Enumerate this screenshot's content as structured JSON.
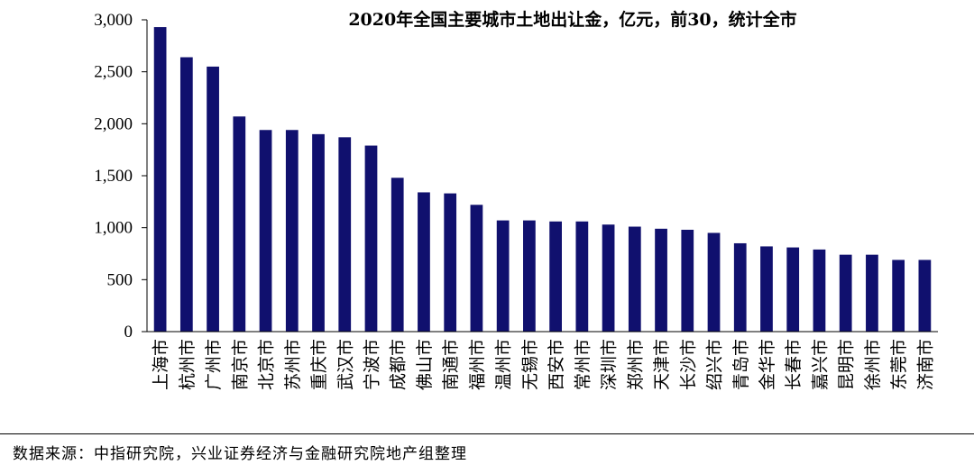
{
  "chart_data": {
    "type": "bar",
    "title": "2020年全国主要城市土地出让金，亿元，前30，统计全市",
    "xlabel": "",
    "ylabel": "",
    "ylim": [
      0,
      3000
    ],
    "yticks": [
      0,
      500,
      1000,
      1500,
      2000,
      2500,
      3000
    ],
    "ytick_labels": [
      "0",
      "500",
      "1,000",
      "1,500",
      "2,000",
      "2,500",
      "3,000"
    ],
    "grid": false,
    "legend": "none",
    "bar_color": "#10106e",
    "categories": [
      "上海市",
      "杭州市",
      "广州市",
      "南京市",
      "北京市",
      "苏州市",
      "重庆市",
      "武汉市",
      "宁波市",
      "成都市",
      "佛山市",
      "南通市",
      "福州市",
      "温州市",
      "无锡市",
      "西安市",
      "常州市",
      "深圳市",
      "郑州市",
      "天津市",
      "长沙市",
      "绍兴市",
      "青岛市",
      "金华市",
      "长春市",
      "嘉兴市",
      "昆明市",
      "徐州市",
      "东莞市",
      "济南市"
    ],
    "values": [
      2930,
      2640,
      2550,
      2070,
      1940,
      1940,
      1900,
      1870,
      1790,
      1480,
      1340,
      1330,
      1220,
      1070,
      1070,
      1060,
      1060,
      1030,
      1010,
      990,
      980,
      950,
      850,
      820,
      810,
      790,
      740,
      740,
      690,
      690
    ]
  },
  "source": "数据来源：中指研究院，兴业证券经济与金融研究院地产组整理"
}
